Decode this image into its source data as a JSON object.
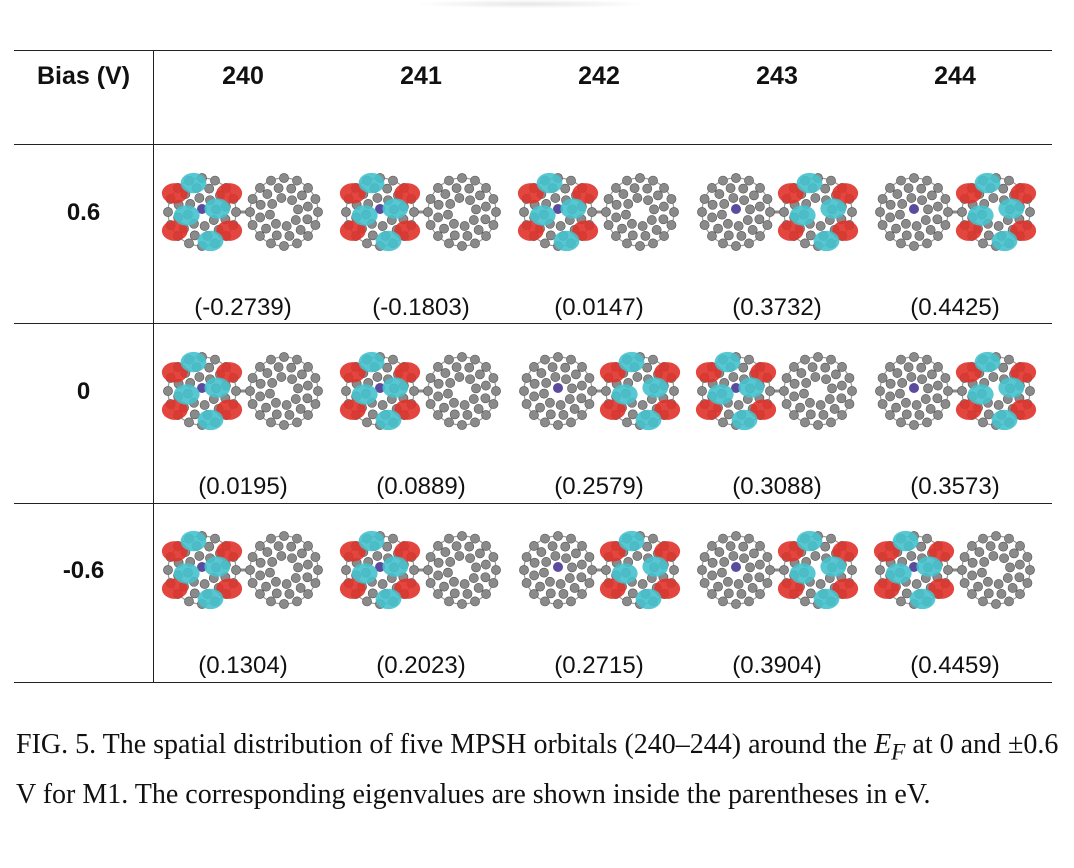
{
  "table": {
    "header_label": "Bias (V)",
    "columns": [
      "240",
      "241",
      "242",
      "243",
      "244"
    ],
    "rows": [
      {
        "bias": "0.6",
        "eigenvalues": [
          "(-0.2739)",
          "(-0.1803)",
          "(0.0147)",
          "(0.3732)",
          "(0.4425)"
        ],
        "lobe_side": [
          "left",
          "left",
          "left",
          "right",
          "right"
        ]
      },
      {
        "bias": "0",
        "eigenvalues": [
          "(0.0195)",
          "(0.0889)",
          "(0.2579)",
          "(0.3088)",
          "(0.3573)"
        ],
        "lobe_side": [
          "left",
          "left",
          "right",
          "left",
          "right"
        ]
      },
      {
        "bias": "-0.6",
        "eigenvalues": [
          "(0.1304)",
          "(0.2023)",
          "(0.2715)",
          "(0.3904)",
          "(0.4459)"
        ],
        "lobe_side": [
          "left",
          "left",
          "right",
          "right",
          "left"
        ]
      }
    ]
  },
  "colors": {
    "positive_lobe": "#e0322a",
    "negative_lobe": "#45c1cc",
    "atom": "#8a8a8a",
    "metal_atom": "#5b4a9e"
  },
  "caption": {
    "prefix": "FIG. 5.  The spatial distribution of five MPSH orbitals (240–244) around the",
    "ef_symbol": "E",
    "ef_subscript": "F",
    "after_ef": " at 0 and ±0.6 V for M1. The corresponding eigenvalues are shown inside the parentheses in eV."
  }
}
